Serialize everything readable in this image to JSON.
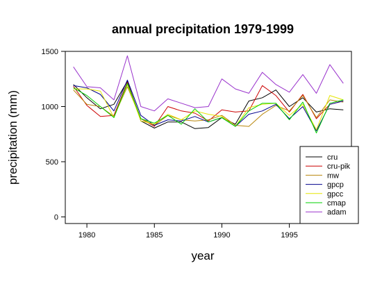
{
  "chart_data": {
    "type": "line",
    "title": "annual precipitation 1979-1999",
    "xlabel": "year",
    "ylabel": "precipitation (mm)",
    "xlim": [
      1978.4,
      1999.6
    ],
    "ylim": [
      -60,
      1500
    ],
    "x_ticks": [
      1980,
      1985,
      1990,
      1995
    ],
    "x_tick_labels": [
      "1980",
      "1985",
      "1990",
      "1995"
    ],
    "y_ticks": [
      0,
      500,
      1000,
      1500
    ],
    "y_tick_labels": [
      "0",
      "500",
      "1000",
      "1500"
    ],
    "legend_position": "bottom-right",
    "x": [
      1979,
      1980,
      1981,
      1982,
      1983,
      1984,
      1985,
      1986,
      1987,
      1988,
      1989,
      1990,
      1991,
      1992,
      1993,
      1994,
      1995,
      1996,
      1997,
      1998,
      1999
    ],
    "series": [
      {
        "name": "cru",
        "color": "#000000",
        "values": [
          1200,
          1080,
          980,
          1020,
          1230,
          870,
          805,
          860,
          860,
          800,
          810,
          900,
          840,
          1050,
          1080,
          1150,
          1000,
          1080,
          950,
          980,
          970
        ]
      },
      {
        "name": "cru-pik",
        "color": "#cc0000",
        "values": [
          1185,
          1010,
          910,
          920,
          1220,
          890,
          820,
          1000,
          960,
          940,
          870,
          970,
          950,
          960,
          1190,
          1100,
          950,
          1110,
          890,
          1020,
          1050
        ]
      },
      {
        "name": "mw",
        "color": "#b8860b",
        "values": [
          1150,
          1020,
          1000,
          910,
          1180,
          890,
          830,
          920,
          880,
          870,
          880,
          920,
          830,
          820,
          930,
          1010,
          960,
          1100,
          900,
          1060,
          1040
        ]
      },
      {
        "name": "gpcp",
        "color": "#00008b",
        "values": [
          1190,
          1170,
          1110,
          960,
          1240,
          920,
          830,
          880,
          870,
          910,
          860,
          900,
          820,
          930,
          960,
          1020,
          890,
          1000,
          780,
          1020,
          1050
        ]
      },
      {
        "name": "gpcc",
        "color": "#e5e500",
        "values": [
          1160,
          1160,
          1140,
          900,
          1200,
          870,
          840,
          930,
          880,
          960,
          930,
          910,
          820,
          990,
          1020,
          1030,
          920,
          1020,
          790,
          1100,
          1060
        ]
      },
      {
        "name": "cmap",
        "color": "#00d000",
        "values": [
          1170,
          1100,
          1000,
          900,
          1210,
          890,
          850,
          920,
          840,
          980,
          860,
          900,
          820,
          960,
          1030,
          1030,
          880,
          1040,
          760,
          1030,
          1060
        ]
      },
      {
        "name": "adam",
        "color": "#9932cc",
        "values": [
          1360,
          1180,
          1170,
          1060,
          1460,
          1000,
          960,
          1070,
          1030,
          990,
          1000,
          1250,
          1160,
          1120,
          1310,
          1200,
          1130,
          1290,
          1120,
          1380,
          1210
        ]
      }
    ]
  }
}
